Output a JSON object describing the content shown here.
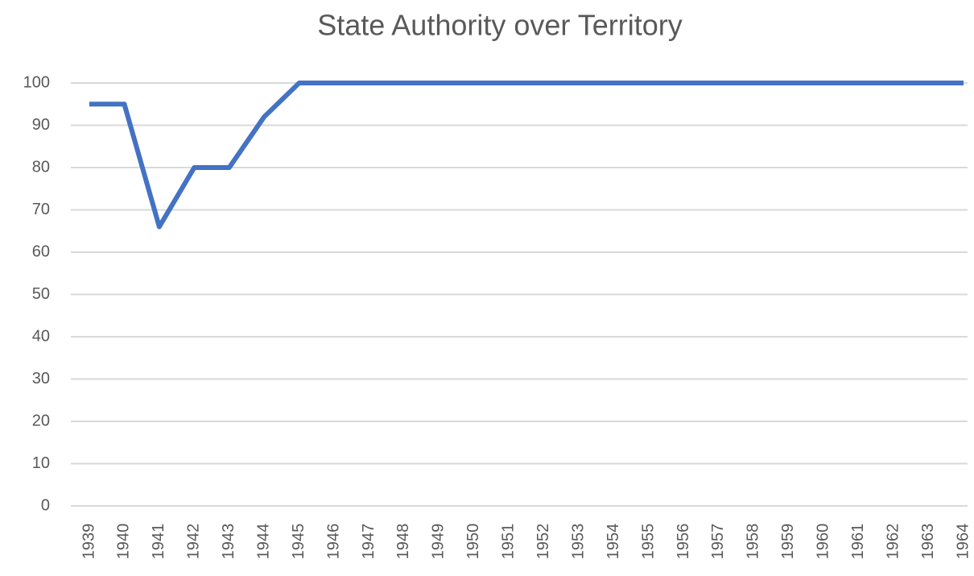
{
  "chart_data": {
    "type": "line",
    "title": "State Authority over Territory",
    "categories": [
      "1939",
      "1940",
      "1941",
      "1942",
      "1943",
      "1944",
      "1945",
      "1946",
      "1947",
      "1948",
      "1949",
      "1950",
      "1951",
      "1952",
      "1953",
      "1954",
      "1955",
      "1956",
      "1957",
      "1958",
      "1959",
      "1960",
      "1961",
      "1962",
      "1963",
      "1964"
    ],
    "series": [
      {
        "name": "State Authority over Territory",
        "color": "#4472c4",
        "values": [
          95,
          95,
          66,
          80,
          80,
          92,
          100,
          100,
          100,
          100,
          100,
          100,
          100,
          100,
          100,
          100,
          100,
          100,
          100,
          100,
          100,
          100,
          100,
          100,
          100,
          100
        ]
      }
    ],
    "ylim": [
      0,
      100
    ],
    "yticks": [
      0,
      10,
      20,
      30,
      40,
      50,
      60,
      70,
      80,
      90,
      100
    ],
    "grid": true
  }
}
